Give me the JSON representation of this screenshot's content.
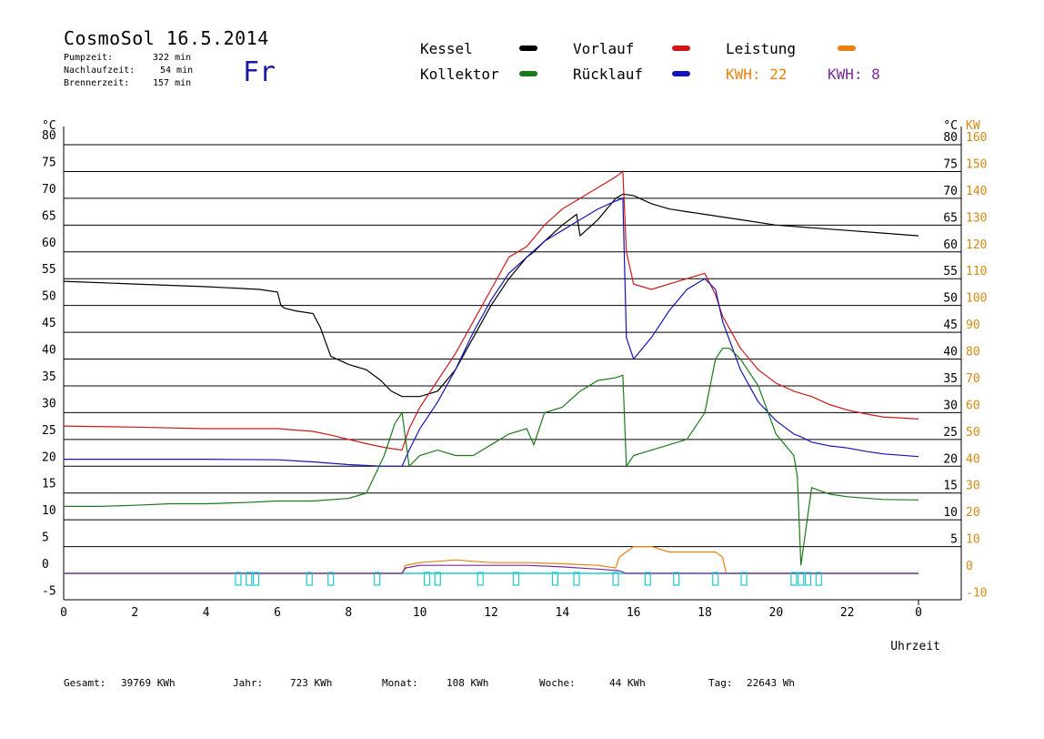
{
  "header": {
    "title": "CosmoSol 16.5.2014",
    "day": "Fr",
    "pump": {
      "label": "Pumpzeit:",
      "value": "322 min"
    },
    "after": {
      "label": "Nachlaufzeit:",
      "value": "54 min"
    },
    "burner": {
      "label": "Brennerzeit:",
      "value": "157 min"
    }
  },
  "legend": {
    "kessel": "Kessel",
    "kollektor": "Kollektor",
    "vorlauf": "Vorlauf",
    "ruecklauf": "Rücklauf",
    "leistung": "Leistung",
    "kwh1": "KWH: 22",
    "kwh2": "KWH: 8"
  },
  "colors": {
    "kessel": "#000000",
    "kollektor": "#1a7a1a",
    "vorlauf": "#d01818",
    "ruecklauf": "#1414b4",
    "leistung": "#e8820e",
    "kwh2": "#7a2a9a",
    "pump": "#20c8d0",
    "kw_axis": "#d48a10"
  },
  "chart_data": {
    "type": "line",
    "xlabel": "Uhrzeit",
    "ylabel_left": "°C",
    "ylabel_right_celsius": "°C",
    "ylabel_right_kw": "KW",
    "xlim": [
      0,
      24
    ],
    "ylim": [
      -5,
      80
    ],
    "x_ticks": [
      "0",
      "2",
      "4",
      "6",
      "8",
      "10",
      "12",
      "14",
      "16",
      "18",
      "20",
      "22",
      "0"
    ],
    "y_ticks_left": [
      "-5",
      "0",
      "5",
      "10",
      "15",
      "20",
      "25",
      "30",
      "35",
      "40",
      "45",
      "50",
      "55",
      "60",
      "65",
      "70",
      "75",
      "80"
    ],
    "y_ticks_right": [
      "5",
      "10",
      "15",
      "20",
      "25",
      "30",
      "35",
      "40",
      "45",
      "50",
      "55",
      "60",
      "65",
      "70",
      "75",
      "80"
    ],
    "kw_ticks": [
      "-10",
      "0",
      "10",
      "20",
      "30",
      "40",
      "50",
      "60",
      "70",
      "80",
      "90",
      "100",
      "110",
      "120",
      "130",
      "140",
      "150",
      "160"
    ],
    "series": [
      {
        "name": "Kessel",
        "key": "kessel",
        "x": [
          0,
          2,
          4,
          5.5,
          6,
          6.1,
          6.2,
          6.5,
          7,
          7.2,
          7.5,
          8,
          8.5,
          8.9,
          9.2,
          9.5,
          10,
          10.5,
          11,
          11.5,
          12,
          12.5,
          13,
          13.2,
          13.5,
          14,
          14.4,
          14.5,
          15,
          15.5,
          15.7,
          16,
          16.5,
          17,
          17.5,
          18,
          19,
          20,
          21,
          22,
          23,
          24
        ],
        "y": [
          54.5,
          54,
          53.5,
          53,
          52.5,
          50,
          49.5,
          49,
          48.5,
          46,
          40.5,
          39,
          38,
          36,
          34,
          33,
          33,
          34,
          38,
          44,
          50,
          55,
          59,
          60,
          62,
          65,
          67,
          63,
          66,
          70,
          70.8,
          70.5,
          69,
          68,
          67.5,
          67,
          66,
          65,
          64.5,
          64,
          63.5,
          63
        ]
      },
      {
        "name": "Vorlauf",
        "key": "vorlauf",
        "x": [
          0,
          2,
          4,
          6,
          7,
          7.5,
          8,
          8.5,
          9,
          9.5,
          9.7,
          10,
          10.5,
          11,
          11.5,
          12,
          12.5,
          13,
          13.5,
          14,
          14.5,
          15,
          15.5,
          15.7,
          15.8,
          16,
          16.5,
          17,
          17.5,
          18,
          18.3,
          18.5,
          19,
          19.5,
          20,
          20.5,
          21,
          21.5,
          22,
          22.5,
          23,
          24
        ],
        "y": [
          27.5,
          27.3,
          27,
          27,
          26.5,
          25.8,
          25,
          24.2,
          23.5,
          23,
          27,
          31,
          36,
          41,
          47,
          53,
          59,
          61,
          65,
          68,
          70,
          72,
          74,
          75,
          60,
          54,
          53,
          54,
          55,
          56,
          52,
          48,
          42,
          38,
          35.5,
          34,
          33,
          31.5,
          30.5,
          29.8,
          29.2,
          28.8
        ]
      },
      {
        "name": "Rücklauf",
        "key": "ruecklauf",
        "x": [
          0,
          2,
          4,
          6,
          7,
          8,
          9,
          9.5,
          9.7,
          10,
          10.5,
          11,
          11.5,
          12,
          12.5,
          13,
          13.5,
          14,
          14.5,
          15,
          15.5,
          15.7,
          15.8,
          16,
          16.5,
          17,
          17.5,
          18,
          18.3,
          18.5,
          19,
          19.5,
          20,
          20.5,
          20.7,
          21,
          21.5,
          22,
          22.5,
          23,
          24
        ],
        "y": [
          21.3,
          21.3,
          21.3,
          21.2,
          20.8,
          20.3,
          20,
          20,
          23,
          27,
          32,
          38,
          45,
          51,
          56,
          59,
          62,
          64,
          66,
          68,
          69.5,
          70,
          44,
          40,
          44,
          49,
          53,
          55,
          53,
          47,
          38,
          32,
          28.5,
          26,
          25.5,
          24.5,
          23.8,
          23.4,
          22.8,
          22.3,
          21.8
        ]
      },
      {
        "name": "Kollektor",
        "key": "kollektor",
        "x": [
          0,
          1,
          2,
          3,
          4,
          5,
          6,
          7,
          8,
          8.5,
          9,
          9.3,
          9.5,
          9.7,
          10,
          10.5,
          11,
          11.5,
          12,
          12.5,
          13,
          13.2,
          13.5,
          14,
          14.5,
          15,
          15.5,
          15.7,
          15.8,
          16,
          16.5,
          17,
          17.5,
          18,
          18.3,
          18.5,
          18.7,
          19,
          19.5,
          20,
          20.5,
          20.6,
          20.7,
          21,
          21.5,
          22,
          23,
          24
        ],
        "y": [
          12.5,
          12.5,
          12.7,
          13,
          13,
          13.2,
          13.5,
          13.5,
          14,
          15,
          22,
          28,
          30,
          20,
          22,
          23,
          22,
          22,
          24,
          26,
          27,
          24,
          30,
          31,
          34,
          36,
          36.5,
          37,
          20,
          22,
          23,
          24,
          25,
          30,
          40,
          42,
          42,
          40,
          35,
          26,
          22,
          18,
          1.5,
          16,
          14.8,
          14.3,
          13.8,
          13.7
        ]
      },
      {
        "name": "Leistung",
        "key": "leistung",
        "x": [
          0,
          9.5,
          9.6,
          10,
          11,
          12,
          13,
          14,
          15,
          15.5,
          15.6,
          16,
          16.5,
          17,
          17.5,
          18,
          18.3,
          18.5,
          18.6,
          24
        ],
        "y": [
          0,
          0,
          1.5,
          2,
          2.5,
          2,
          2,
          1.8,
          1.5,
          1,
          3,
          5,
          5,
          4,
          4,
          4,
          4,
          3,
          0,
          0
        ]
      },
      {
        "name": "KWH 8",
        "key": "kwh2",
        "x": [
          0,
          9.5,
          9.6,
          10,
          11,
          12,
          13,
          14,
          15,
          15.6,
          15.8,
          24
        ],
        "y": [
          0,
          0,
          1,
          1.5,
          1.5,
          1.5,
          1.5,
          1.2,
          0.8,
          0.5,
          0,
          0
        ]
      }
    ],
    "pump_markers": [
      4.9,
      5.2,
      5.4,
      6.9,
      7.5,
      8.8,
      10.2,
      10.5,
      11.7,
      12.7,
      13.8,
      14.4,
      15.5,
      16.4,
      17.2,
      18.3,
      19.1,
      20.5,
      20.7,
      20.9,
      21.2
    ]
  },
  "footer": {
    "gesamt": {
      "label": "Gesamt:",
      "value": "39769 KWh"
    },
    "jahr": {
      "label": "Jahr:",
      "value": "723 KWh"
    },
    "monat": {
      "label": "Monat:",
      "value": "108 KWh"
    },
    "woche": {
      "label": "Woche:",
      "value": "44 KWh"
    },
    "tag": {
      "label": "Tag:",
      "value": "22643 Wh"
    }
  }
}
